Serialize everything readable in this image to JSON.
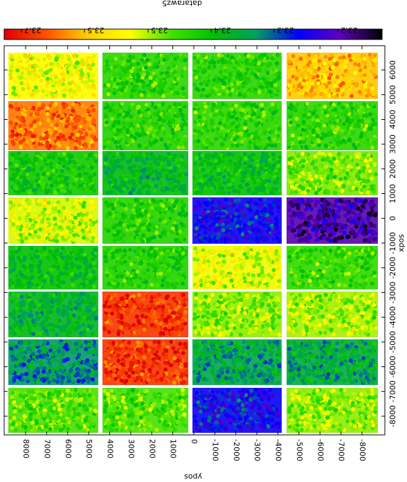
{
  "chart_data": {
    "type": "scatter",
    "note_orientation": "plot rendered rotated 180 degrees; text appears upside down",
    "colorbar": {
      "label": "datarawz5",
      "tick_labels": [
        "23.7",
        "23.5",
        "23.5",
        "23.4",
        "23.3",
        "23.2"
      ],
      "stops": [
        "#e00000",
        "#ff5000",
        "#ffd000",
        "#ffff00",
        "#40e000",
        "#00c000",
        "#00a060",
        "#0000ff",
        "#6000c0",
        "#000000"
      ]
    },
    "x_axis": {
      "label": "xpos",
      "range": [
        -8700,
        6600
      ],
      "tick_labels": [
        "6000",
        "5000",
        "4000",
        "3000",
        "2000",
        "1000",
        "0",
        "-1000",
        "-2000",
        "-3000",
        "-4000",
        "-5000",
        "-6000",
        "-7000",
        "-8000"
      ]
    },
    "y_axis": {
      "label": "ypos",
      "range": [
        -8800,
        9300
      ],
      "tick_labels": [
        "-8000",
        "-7000",
        "-6000",
        "-5000",
        "-4000",
        "-3000",
        "-2000",
        "-1000",
        "0",
        "1000",
        "2000",
        "3000",
        "4000",
        "5000",
        "6000",
        "7000",
        "8000"
      ]
    },
    "blocks_description": "4 columns x 8 rows of rectangular detector regions, each with an average value",
    "blocks": [
      {
        "col": 0,
        "row": 0,
        "value": 23.52
      },
      {
        "col": 0,
        "row": 1,
        "value": 23.65
      },
      {
        "col": 0,
        "row": 2,
        "value": 23.38
      },
      {
        "col": 0,
        "row": 3,
        "value": 23.5
      },
      {
        "col": 0,
        "row": 4,
        "value": 23.36
      },
      {
        "col": 0,
        "row": 5,
        "value": 23.33
      },
      {
        "col": 0,
        "row": 6,
        "value": 23.28
      },
      {
        "col": 0,
        "row": 7,
        "value": 23.44
      },
      {
        "col": 1,
        "row": 0,
        "value": 23.41
      },
      {
        "col": 1,
        "row": 1,
        "value": 23.4
      },
      {
        "col": 1,
        "row": 2,
        "value": 23.34
      },
      {
        "col": 1,
        "row": 3,
        "value": 23.4
      },
      {
        "col": 1,
        "row": 4,
        "value": 23.4
      },
      {
        "col": 1,
        "row": 5,
        "value": 23.7
      },
      {
        "col": 1,
        "row": 6,
        "value": 23.7
      },
      {
        "col": 1,
        "row": 7,
        "value": 23.44
      },
      {
        "col": 2,
        "row": 0,
        "value": 23.41
      },
      {
        "col": 2,
        "row": 1,
        "value": 23.41
      },
      {
        "col": 2,
        "row": 2,
        "value": 23.36
      },
      {
        "col": 2,
        "row": 3,
        "value": 23.2
      },
      {
        "col": 2,
        "row": 4,
        "value": 23.51
      },
      {
        "col": 2,
        "row": 5,
        "value": 23.47
      },
      {
        "col": 2,
        "row": 6,
        "value": 23.3
      },
      {
        "col": 2,
        "row": 7,
        "value": 23.2
      },
      {
        "col": 3,
        "row": 0,
        "value": 23.6
      },
      {
        "col": 3,
        "row": 1,
        "value": 23.41
      },
      {
        "col": 3,
        "row": 2,
        "value": 23.46
      },
      {
        "col": 3,
        "row": 3,
        "value": 23.12
      },
      {
        "col": 3,
        "row": 4,
        "value": 23.42
      },
      {
        "col": 3,
        "row": 5,
        "value": 23.48
      },
      {
        "col": 3,
        "row": 6,
        "value": 23.31
      },
      {
        "col": 3,
        "row": 7,
        "value": 23.47
      }
    ]
  }
}
